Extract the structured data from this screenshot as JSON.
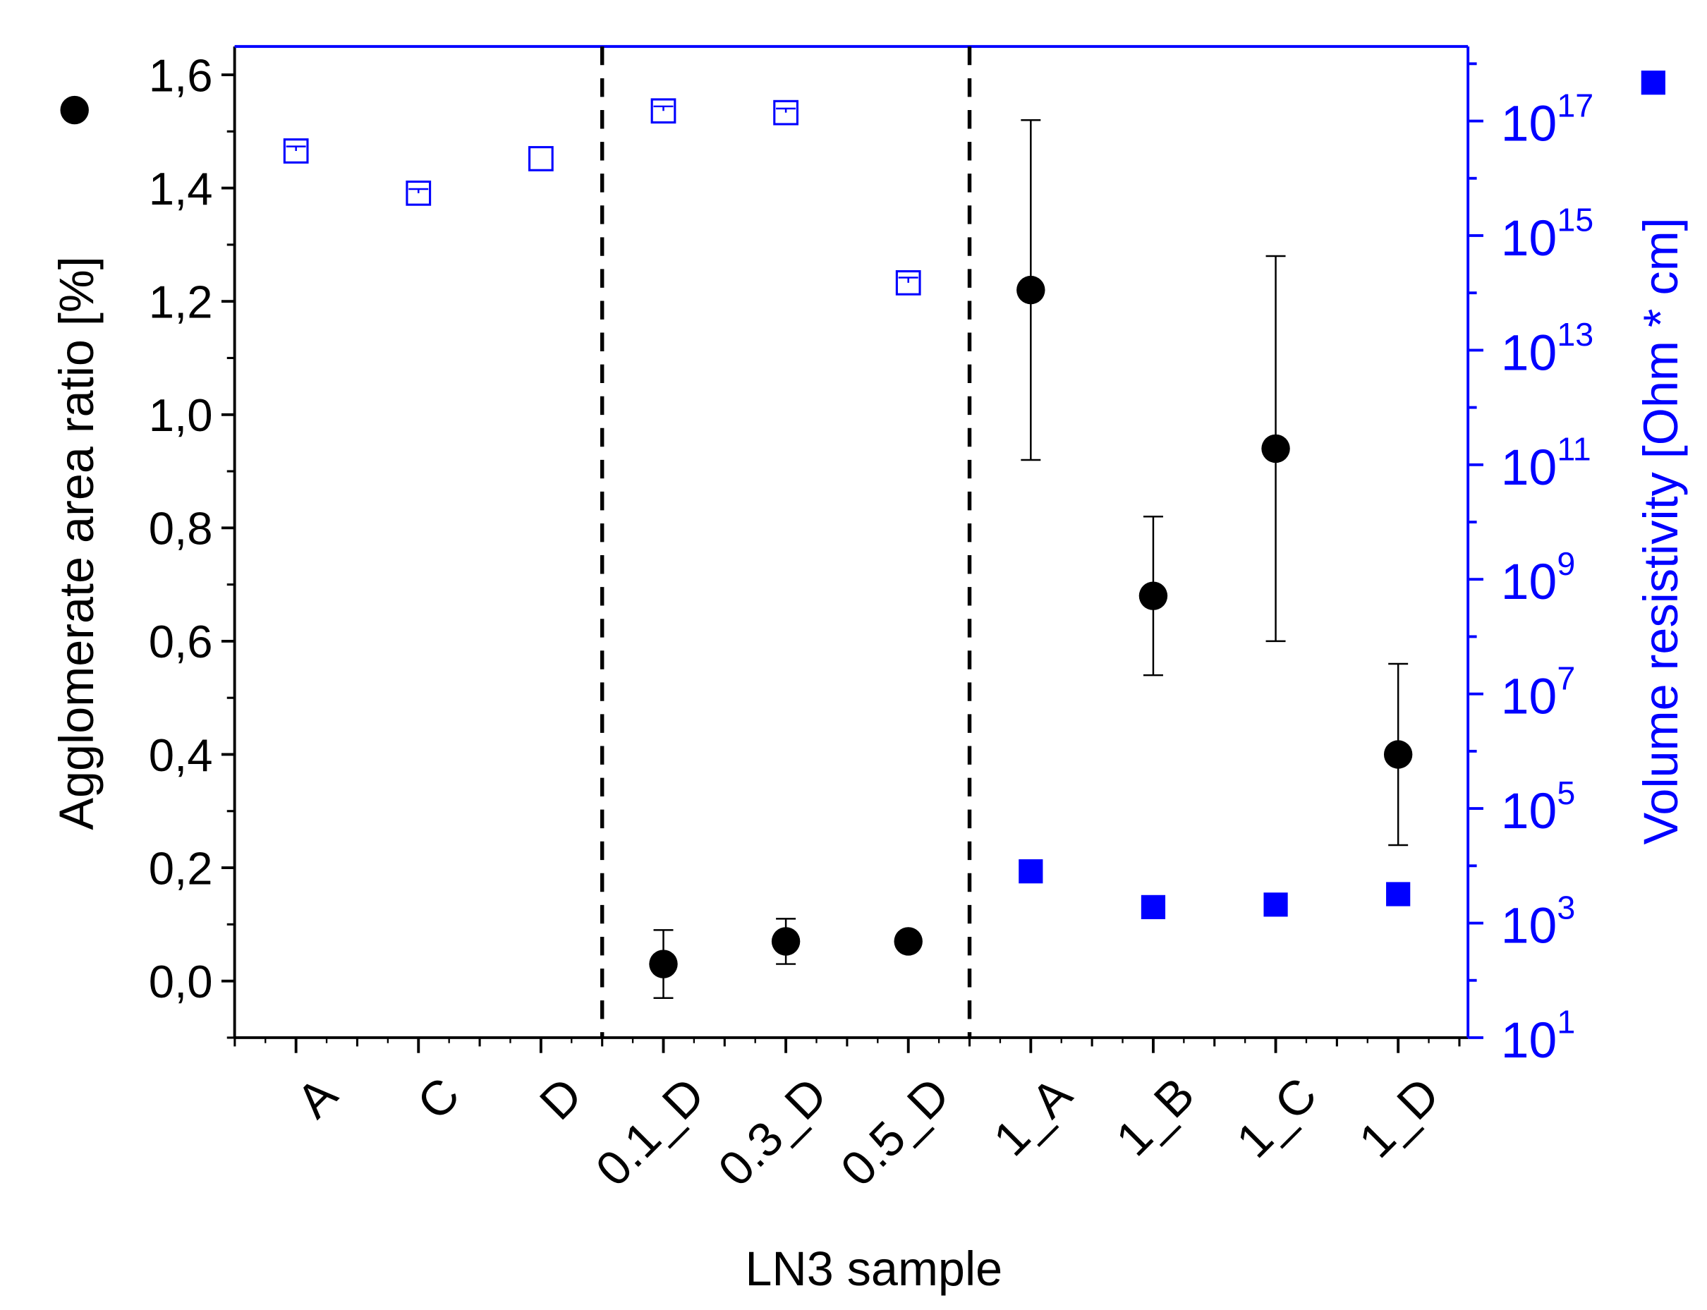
{
  "chart_data": {
    "type": "scatter",
    "xlabel": "LN3 sample",
    "categories": [
      "A",
      "C",
      "D",
      "0.1_D",
      "0.3_D",
      "0.5_D",
      "1_A",
      "1_B",
      "1_C",
      "1_D"
    ],
    "y_left": {
      "label": "Agglomerate area ratio [%]",
      "range": [
        -0.1,
        1.65
      ],
      "ticks": [
        "0,0",
        "0,2",
        "0,4",
        "0,6",
        "0,8",
        "1,0",
        "1,2",
        "1,4",
        "1,6"
      ],
      "color": "#000000"
    },
    "y_right": {
      "label": "Volume resistivity [Ohm * cm]",
      "scale": "log",
      "range": [
        10,
        2e+18
      ],
      "ticks": [
        {
          "base": "10",
          "exp": "1"
        },
        {
          "base": "10",
          "exp": "3"
        },
        {
          "base": "10",
          "exp": "5"
        },
        {
          "base": "10",
          "exp": "7"
        },
        {
          "base": "10",
          "exp": "9"
        },
        {
          "base": "10",
          "exp": "11"
        },
        {
          "base": "10",
          "exp": "13"
        },
        {
          "base": "10",
          "exp": "15"
        },
        {
          "base": "10",
          "exp": "17"
        }
      ],
      "color": "#0000ff"
    },
    "separators_after": [
      "D",
      "0.5_D"
    ],
    "series": [
      {
        "marker": "filled-circle",
        "axis": "left",
        "color": "#000000",
        "points": [
          {
            "x": "0.1_D",
            "y": 0.03,
            "err_low": -0.03,
            "err_high": 0.09
          },
          {
            "x": "0.3_D",
            "y": 0.07,
            "err_low": 0.03,
            "err_high": 0.11
          },
          {
            "x": "0.5_D",
            "y": 0.07,
            "err_low": null,
            "err_high": null
          },
          {
            "x": "1_A",
            "y": 1.22,
            "err_low": 0.92,
            "err_high": 1.52
          },
          {
            "x": "1_B",
            "y": 0.68,
            "err_low": 0.54,
            "err_high": 0.82
          },
          {
            "x": "1_C",
            "y": 0.94,
            "err_low": 0.6,
            "err_high": 1.28
          },
          {
            "x": "1_D",
            "y": 0.4,
            "err_low": 0.24,
            "err_high": 0.56
          }
        ]
      },
      {
        "marker": "open-square",
        "axis": "right",
        "color": "#0000ff",
        "points": [
          {
            "x": "A",
            "y": 3e+16,
            "err_high": 3.6e+16
          },
          {
            "x": "C",
            "y": 5500000000000000.0,
            "err_high": 6500000000000000.0
          },
          {
            "x": "D",
            "y": 2.2e+16,
            "err_high": null
          },
          {
            "x": "0.1_D",
            "y": 1.5e+17,
            "err_high": 1.8e+17
          },
          {
            "x": "0.3_D",
            "y": 1.4e+17,
            "err_high": 1.65e+17
          },
          {
            "x": "0.5_D",
            "y": 150000000000000.0,
            "err_high": 185000000000000.0
          }
        ]
      },
      {
        "marker": "filled-square",
        "axis": "right",
        "color": "#0000ff",
        "points": [
          {
            "x": "1_A",
            "y": 8000,
            "err_high": 9500
          },
          {
            "x": "1_B",
            "y": 1900,
            "err_high": 2900
          },
          {
            "x": "1_C",
            "y": 2100,
            "err_high": 3200
          },
          {
            "x": "1_D",
            "y": 3200,
            "err_high": null
          }
        ]
      }
    ]
  }
}
